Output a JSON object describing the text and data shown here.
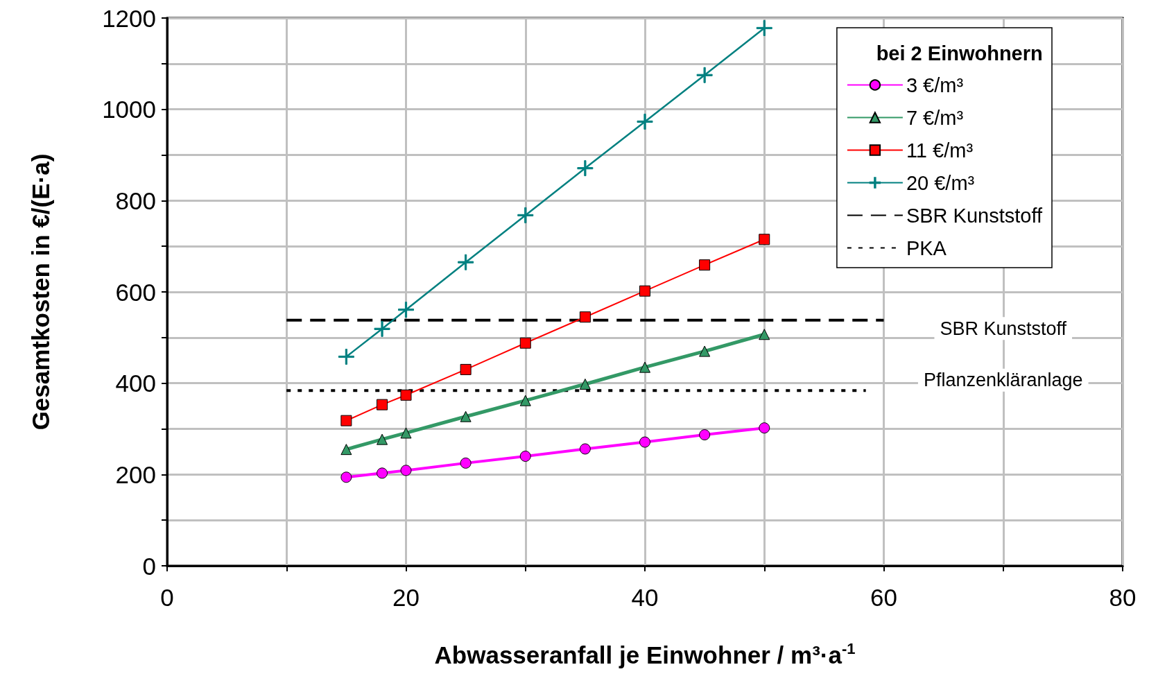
{
  "chart_data": {
    "type": "line",
    "xlabel": "Abwasseranfall je Einwohner / m³·a$^{-1}$",
    "ylabel": "Gesamtkosten in €/(E·a)",
    "legend_title": "bei 2 Einwohnern",
    "x": [
      15,
      18,
      20,
      25,
      30,
      35,
      40,
      45,
      50
    ],
    "series": [
      {
        "name": "3 €/m³",
        "color": "#ff00ff",
        "marker": "circle",
        "values": [
          194,
          203,
          209,
          225,
          240,
          256,
          271,
          287,
          302
        ]
      },
      {
        "name": "7 €/m³",
        "color": "#339966",
        "marker": "triangle",
        "values": [
          255,
          277,
          291,
          327,
          362,
          398,
          435,
          470,
          507
        ]
      },
      {
        "name": "11 €/m³",
        "color": "#ff0000",
        "marker": "square",
        "values": [
          318,
          353,
          374,
          430,
          488,
          545,
          602,
          659,
          715
        ]
      },
      {
        "name": "20 €/m³",
        "color": "#008080",
        "marker": "cross",
        "values": [
          458,
          519,
          561,
          665,
          768,
          871,
          973,
          1075,
          1178
        ]
      },
      {
        "name": "SBR Kunststoff",
        "color": "#000000",
        "marker": "none",
        "line_style": "dashed",
        "x": [
          10,
          60
        ],
        "values": [
          538,
          538
        ]
      },
      {
        "name": "PKA",
        "color": "#000000",
        "marker": "none",
        "line_style": "dotted",
        "x": [
          10,
          58.5
        ],
        "values": [
          384,
          384
        ]
      }
    ],
    "annotations": [
      "SBR Kunststoff",
      "Pflanzenkläranlage"
    ],
    "xlim": [
      0,
      80
    ],
    "xticks": [
      0,
      {
        "value": 10,
        "label": null
      },
      20,
      {
        "value": 30,
        "label": null
      },
      40,
      {
        "value": 50,
        "label": null
      },
      60,
      {
        "value": 70,
        "label": null
      },
      80
    ],
    "ylim": [
      0,
      1200
    ],
    "yticks": [
      0,
      {
        "value": 100,
        "label": null
      },
      200,
      {
        "value": 300,
        "label": null
      },
      400,
      {
        "value": 500,
        "label": null
      },
      600,
      {
        "value": 700,
        "label": null
      },
      800,
      {
        "value": 900,
        "label": null
      },
      1000,
      {
        "value": 1100,
        "label": null
      },
      1200
    ],
    "grid": true,
    "legend": "top right"
  }
}
